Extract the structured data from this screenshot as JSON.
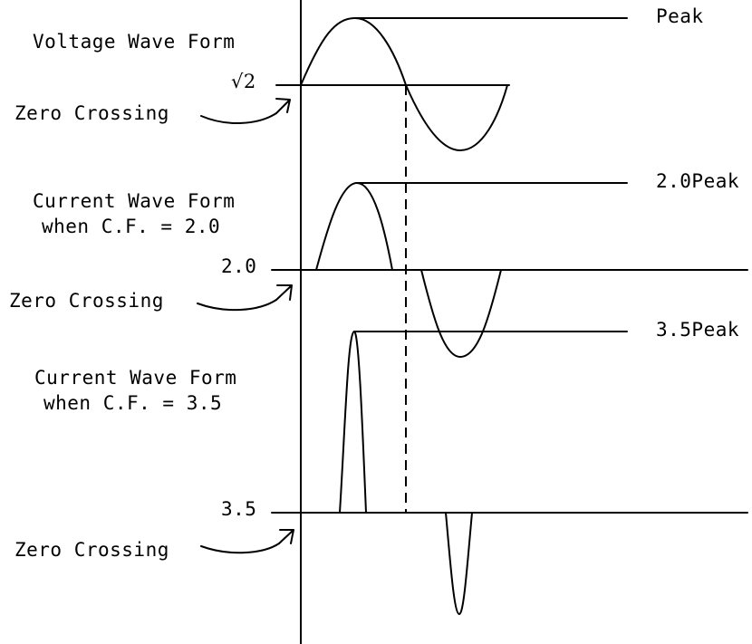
{
  "voltage": {
    "title": "Voltage Wave Form",
    "peak_label": "Peak",
    "level_label": "√2",
    "zero_label": "Zero Crossing"
  },
  "current_cf2": {
    "title_line1": "Current Wave Form",
    "title_line2": "when C.F. = 2.0",
    "peak_label": "2.0Peak",
    "level_label": "2.0",
    "zero_label": "Zero Crossing"
  },
  "current_cf35": {
    "title_line1": "Current Wave Form",
    "title_line2": "when C.F. = 3.5",
    "peak_label": "3.5Peak",
    "level_label": "3.5",
    "zero_label": "Zero Crossing"
  },
  "colors": {
    "line": "#000000",
    "background": "#ffffff"
  }
}
